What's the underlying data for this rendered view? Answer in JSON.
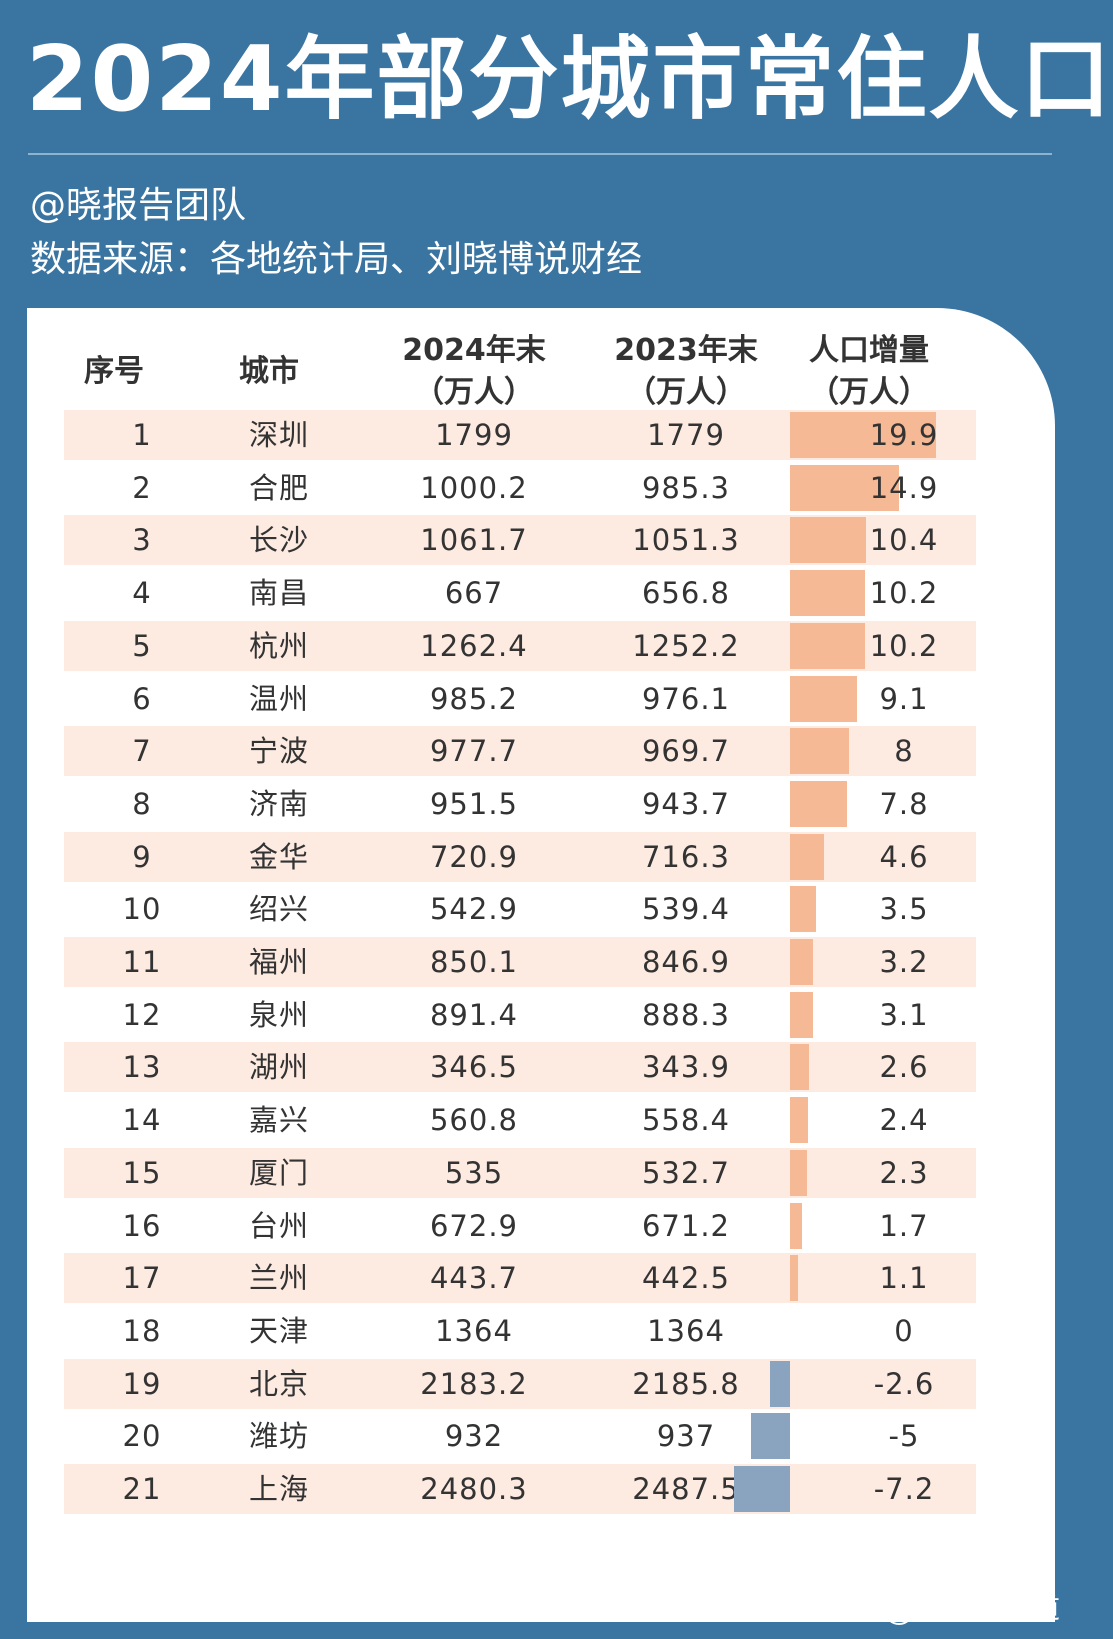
{
  "title": "2024年部分城市常住人口",
  "subtitle": "@晓报告团队",
  "source": "数据来源：各地统计局、刘晓博说财经",
  "watermark": "昊晓波频道",
  "header": {
    "rank": "序号",
    "city": "城市",
    "y2024_line1": "2024年末",
    "y2024_line2": "（万人）",
    "y2023_line1": "2023年末",
    "y2023_line2": "（万人）",
    "change_line1": "人口增量",
    "change_line2": "（万人）"
  },
  "colors": {
    "background": "#3a75a2",
    "positive_bar": "#f5b995",
    "negative_bar": "#8aa4c0",
    "row_alt": "#fdebe2"
  },
  "chart_data": {
    "type": "table",
    "columns": [
      "序号",
      "城市",
      "2024年末（万人）",
      "2023年末（万人）",
      "人口增量（万人）"
    ],
    "rows": [
      {
        "rank": "1",
        "city": "深圳",
        "y2024": "1799",
        "y2023": "1779",
        "change": "19.9",
        "change_value": 19.9
      },
      {
        "rank": "2",
        "city": "合肥",
        "y2024": "1000.2",
        "y2023": "985.3",
        "change": "14.9",
        "change_value": 14.9
      },
      {
        "rank": "3",
        "city": "长沙",
        "y2024": "1061.7",
        "y2023": "1051.3",
        "change": "10.4",
        "change_value": 10.4
      },
      {
        "rank": "4",
        "city": "南昌",
        "y2024": "667",
        "y2023": "656.8",
        "change": "10.2",
        "change_value": 10.2
      },
      {
        "rank": "5",
        "city": "杭州",
        "y2024": "1262.4",
        "y2023": "1252.2",
        "change": "10.2",
        "change_value": 10.2
      },
      {
        "rank": "6",
        "city": "温州",
        "y2024": "985.2",
        "y2023": "976.1",
        "change": "9.1",
        "change_value": 9.1
      },
      {
        "rank": "7",
        "city": "宁波",
        "y2024": "977.7",
        "y2023": "969.7",
        "change": "8",
        "change_value": 8
      },
      {
        "rank": "8",
        "city": "济南",
        "y2024": "951.5",
        "y2023": "943.7",
        "change": "7.8",
        "change_value": 7.8
      },
      {
        "rank": "9",
        "city": "金华",
        "y2024": "720.9",
        "y2023": "716.3",
        "change": "4.6",
        "change_value": 4.6
      },
      {
        "rank": "10",
        "city": "绍兴",
        "y2024": "542.9",
        "y2023": "539.4",
        "change": "3.5",
        "change_value": 3.5
      },
      {
        "rank": "11",
        "city": "福州",
        "y2024": "850.1",
        "y2023": "846.9",
        "change": "3.2",
        "change_value": 3.2
      },
      {
        "rank": "12",
        "city": "泉州",
        "y2024": "891.4",
        "y2023": "888.3",
        "change": "3.1",
        "change_value": 3.1
      },
      {
        "rank": "13",
        "city": "湖州",
        "y2024": "346.5",
        "y2023": "343.9",
        "change": "2.6",
        "change_value": 2.6
      },
      {
        "rank": "14",
        "city": "嘉兴",
        "y2024": "560.8",
        "y2023": "558.4",
        "change": "2.4",
        "change_value": 2.4
      },
      {
        "rank": "15",
        "city": "厦门",
        "y2024": "535",
        "y2023": "532.7",
        "change": "2.3",
        "change_value": 2.3
      },
      {
        "rank": "16",
        "city": "台州",
        "y2024": "672.9",
        "y2023": "671.2",
        "change": "1.7",
        "change_value": 1.7
      },
      {
        "rank": "17",
        "city": "兰州",
        "y2024": "443.7",
        "y2023": "442.5",
        "change": "1.1",
        "change_value": 1.1
      },
      {
        "rank": "18",
        "city": "天津",
        "y2024": "1364",
        "y2023": "1364",
        "change": "0",
        "change_value": 0
      },
      {
        "rank": "19",
        "city": "北京",
        "y2024": "2183.2",
        "y2023": "2185.8",
        "change": "-2.6",
        "change_value": -2.6
      },
      {
        "rank": "20",
        "city": "潍坊",
        "y2024": "932",
        "y2023": "937",
        "change": "-5",
        "change_value": -5
      },
      {
        "rank": "21",
        "city": "上海",
        "y2024": "2480.3",
        "y2023": "2487.5",
        "change": "-7.2",
        "change_value": -7.2
      }
    ]
  }
}
